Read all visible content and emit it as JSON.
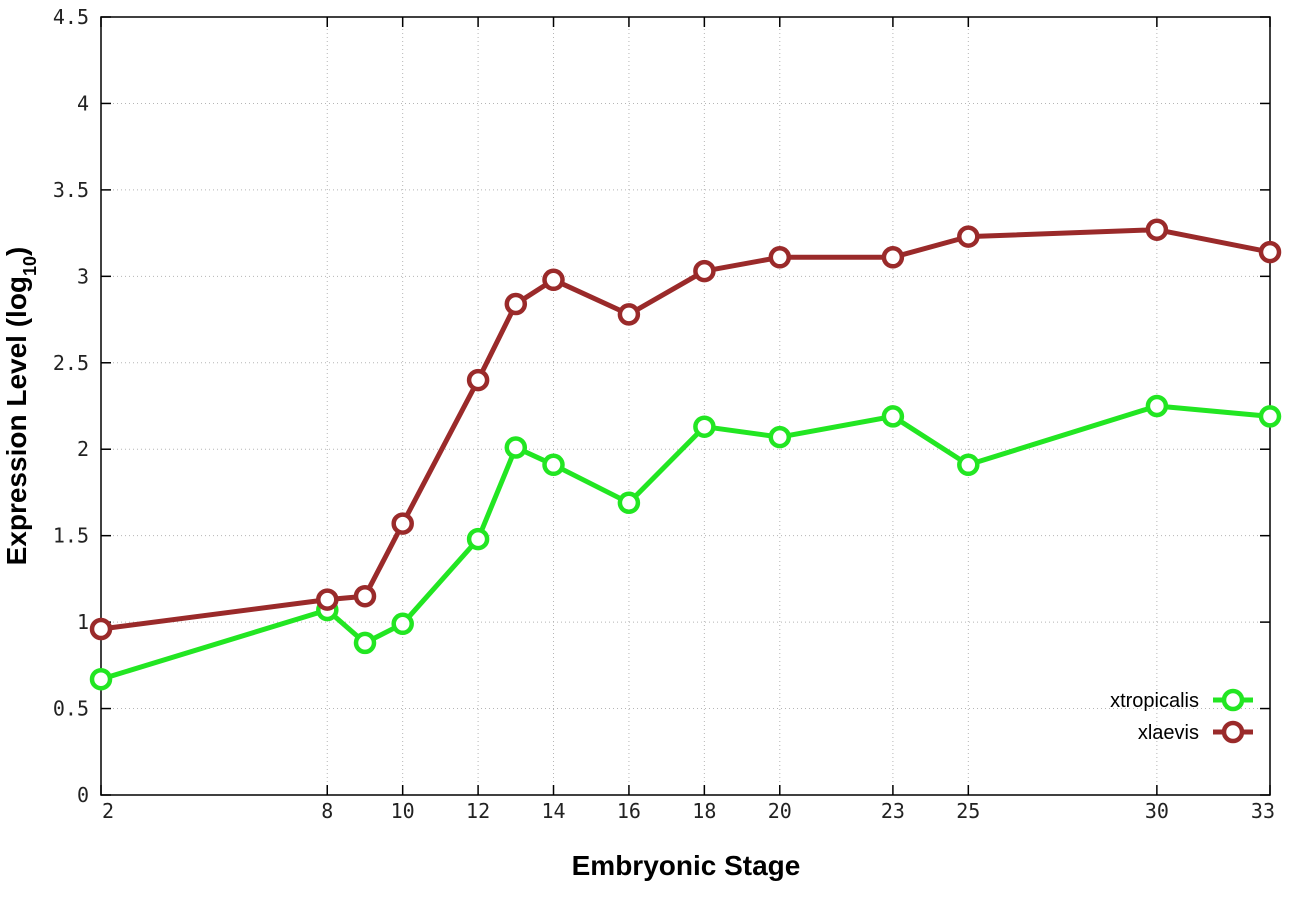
{
  "chart_data": {
    "type": "line",
    "xlabel": "Embryonic Stage",
    "ylabel": "Expression Level (log",
    "ylabel_subscript": "10",
    "ylabel_close": ")",
    "x_ticks": [
      "2",
      "8",
      "10",
      "12",
      "14",
      "16",
      "18",
      "20",
      "23",
      "25",
      "30",
      "33"
    ],
    "y_ticks": [
      "0",
      "0.5",
      "1",
      "1.5",
      "2",
      "2.5",
      "3",
      "3.5",
      "4",
      "4.5"
    ],
    "ylim": [
      0,
      4.5
    ],
    "grid": true,
    "legend_position": "bottom-right",
    "categories": [
      "2",
      "8",
      "9",
      "10",
      "12",
      "13",
      "14",
      "16",
      "18",
      "20",
      "23",
      "25",
      "30",
      "33"
    ],
    "series": [
      {
        "name": "xtropicalis",
        "color": "#22e622",
        "values": [
          0.67,
          1.07,
          0.88,
          0.99,
          1.48,
          2.01,
          1.91,
          1.69,
          2.13,
          2.07,
          2.19,
          1.91,
          2.25,
          2.19
        ]
      },
      {
        "name": "xlaevis",
        "color": "#9a2a2a",
        "values": [
          0.96,
          1.13,
          1.15,
          1.57,
          2.4,
          2.84,
          2.98,
          2.78,
          3.03,
          3.11,
          3.11,
          3.23,
          3.27,
          3.14
        ]
      }
    ]
  }
}
